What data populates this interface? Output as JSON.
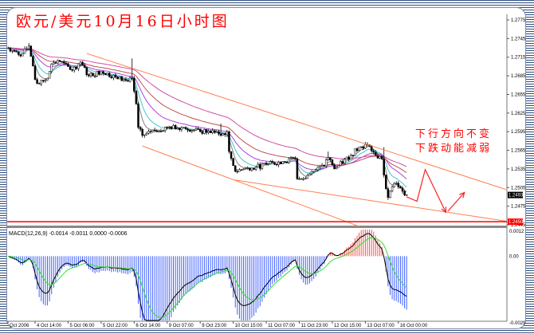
{
  "title": "欧元/美元10月16日小时图",
  "annotations": [
    "下行方向不变",
    "下跌动能减弱"
  ],
  "chart_data": {
    "type": "candlestick",
    "price_axis": {
      "range": [
        1.2445,
        1.2775
      ],
      "ticks": [
        "1.2775",
        "1.2745",
        "1.2715",
        "1.2685",
        "1.2655",
        "1.2625",
        "1.2595",
        "1.2565",
        "1.2535",
        "1.2505",
        "1.2475",
        "1.2445"
      ]
    },
    "time_axis": {
      "labels": [
        "Oct 2006",
        "4 Oct 14:00",
        "5 Oct 06:00",
        "5 Oct 22:00",
        "6 Oct 14:00",
        "9 Oct 07:00",
        "9 Oct 23:00",
        "10 Oct 15:00",
        "11 Oct 07:00",
        "11 Oct 23:00",
        "12 Oct 15:00",
        "13 Oct 07:00",
        "16 Oct 00:00"
      ]
    },
    "price_path": [
      {
        "t": "4 Oct 01:00",
        "close": 1.273
      },
      {
        "t": "4 Oct 07:00",
        "close": 1.2717
      },
      {
        "t": "4 Oct 11:00",
        "close": 1.2733,
        "high": 1.2738
      },
      {
        "t": "4 Oct 14:00",
        "close": 1.2679
      },
      {
        "t": "4 Oct 16:00",
        "close": 1.2672
      },
      {
        "t": "4 Oct 20:00",
        "close": 1.2681
      },
      {
        "t": "4 Oct 22:00",
        "close": 1.2704
      },
      {
        "t": "5 Oct 02:00",
        "close": 1.2708
      },
      {
        "t": "5 Oct 08:00",
        "close": 1.2694
      },
      {
        "t": "5 Oct 12:00",
        "close": 1.2707
      },
      {
        "t": "5 Oct 16:00",
        "close": 1.2685
      },
      {
        "t": "5 Oct 22:00",
        "close": 1.2692
      },
      {
        "t": "6 Oct 05:00",
        "close": 1.2683
      },
      {
        "t": "6 Oct 11:00",
        "close": 1.2676
      },
      {
        "t": "6 Oct 13:00",
        "close": 1.2681,
        "high": 1.2713
      },
      {
        "t": "6 Oct 15:00",
        "close": 1.264
      },
      {
        "t": "6 Oct 16:00",
        "close": 1.2602
      },
      {
        "t": "6 Oct 18:00",
        "close": 1.2589
      },
      {
        "t": "6 Oct 22:00",
        "close": 1.2595
      },
      {
        "t": "9 Oct 07:00",
        "close": 1.2602
      },
      {
        "t": "9 Oct 15:00",
        "close": 1.2602
      },
      {
        "t": "9 Oct 23:00",
        "close": 1.2595
      },
      {
        "t": "10 Oct 07:00",
        "close": 1.2595
      },
      {
        "t": "10 Oct 09:00",
        "close": 1.2589,
        "high": 1.2608
      },
      {
        "t": "10 Oct 12:00",
        "close": 1.2595
      },
      {
        "t": "10 Oct 13:00",
        "close": 1.2563
      },
      {
        "t": "10 Oct 16:00",
        "close": 1.2531
      },
      {
        "t": "10 Oct 20:00",
        "close": 1.2535
      },
      {
        "t": "11 Oct 02:00",
        "close": 1.2538
      },
      {
        "t": "11 Oct 07:00",
        "close": 1.2542
      },
      {
        "t": "11 Oct 15:00",
        "close": 1.2547
      },
      {
        "t": "11 Oct 21:00",
        "close": 1.2551
      },
      {
        "t": "11 Oct 22:00",
        "close": 1.2519
      },
      {
        "t": "12 Oct 01:00",
        "close": 1.2519
      },
      {
        "t": "12 Oct 05:00",
        "close": 1.2531
      },
      {
        "t": "12 Oct 11:00",
        "close": 1.254
      },
      {
        "t": "12 Oct 13:00",
        "close": 1.2553,
        "high": 1.2563
      },
      {
        "t": "12 Oct 16:00",
        "close": 1.2535
      },
      {
        "t": "13 Oct 00:00",
        "close": 1.2557
      },
      {
        "t": "13 Oct 04:00",
        "close": 1.257
      },
      {
        "t": "13 Oct 08:00",
        "close": 1.2574
      },
      {
        "t": "13 Oct 12:00",
        "close": 1.2557
      },
      {
        "t": "13 Oct 15:00",
        "close": 1.2551
      },
      {
        "t": "13 Oct 16:00",
        "close": 1.2525,
        "high": 1.257
      },
      {
        "t": "13 Oct 18:00",
        "close": 1.2489
      },
      {
        "t": "13 Oct 20:00",
        "close": 1.2506
      },
      {
        "t": "13 Oct 22:00",
        "close": 1.2512
      },
      {
        "t": "16 Oct 00:00",
        "close": 1.2506
      },
      {
        "t": "16 Oct 02:00",
        "close": 1.2499
      },
      {
        "t": "16 Oct 04:00",
        "close": 1.2493
      }
    ],
    "current_price": "1.2493",
    "horizontal_level": {
      "price": "1.2450",
      "color": "#ff0000"
    },
    "trendlines": [
      {
        "from": {
          "t": "5 Oct 15:00",
          "price": 1.2721
        },
        "to": {
          "t": "18 Oct 04:00",
          "price": 1.2502
        }
      },
      {
        "from": {
          "t": "6 Oct 18:00",
          "price": 1.2572
        },
        "to": {
          "t": "13 Oct 06:00",
          "price": 1.244
        }
      },
      {
        "from": {
          "t": "10 Oct 16:00",
          "price": 1.2517
        },
        "to": {
          "t": "18 Oct 04:00",
          "price": 1.2451
        }
      }
    ],
    "trendline_color": "#ff8050",
    "forecast_path": [
      {
        "t": "16 Oct 04:00",
        "price": 1.249
      },
      {
        "t": "16 Oct 09:00",
        "price": 1.2483
      },
      {
        "t": "16 Oct 13:00",
        "price": 1.2534
      },
      {
        "t": "16 Oct 23:00",
        "price": 1.2465
      }
    ],
    "forecast_arrow": [
      {
        "t": "17 Oct 00:00",
        "price": 1.2467
      },
      {
        "t": "17 Oct 08:00",
        "price": 1.2497
      }
    ],
    "forecast_color": "#ff2020",
    "moving_average_colors": [
      "#808080",
      "#40c8c8",
      "#b040e0",
      "#c05050",
      "#d050a8"
    ],
    "macd": {
      "label": "MACD(12,26,9) -0.0014 -0.0011 0.0000 -0.0006",
      "range": [
        -0.0029,
        0.0012
      ],
      "ticks": [
        "0.0012",
        "0.00",
        "-0.0029"
      ],
      "positive_color": "#ff5050",
      "negative_color": "#4060ff",
      "main_color": "#000000",
      "signal_color": "#30e030"
    }
  }
}
